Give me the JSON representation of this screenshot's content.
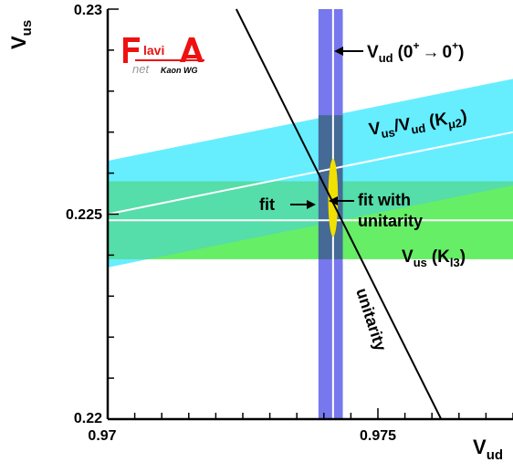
{
  "logo": {
    "flavi": "Flavi",
    "a": "A",
    "net": "net",
    "sub": "Kaon WG"
  },
  "colors": {
    "kl3_band": "#66ee66",
    "kmu2_band": "#66eeff",
    "overlap_band": "#55ddaa",
    "vud_band": "#7777ee",
    "vud_dark": "#336677",
    "ellipse": "#f2e000",
    "logo_red": "#ee1111",
    "logo_grey": "#999999"
  },
  "chart_data": {
    "type": "line",
    "xlabel": "V",
    "xlabel_sub": "ud",
    "ylabel": "V",
    "ylabel_sub": "us",
    "xlim": [
      0.97,
      0.9775
    ],
    "ylim": [
      0.22,
      0.23
    ],
    "xticks": [
      "0.97",
      "0.975"
    ],
    "yticks": [
      "0.22",
      "0.225",
      "0.23"
    ],
    "xtick_values": [
      0.97,
      0.975
    ],
    "ytick_values": [
      0.22,
      0.225,
      0.23
    ],
    "grid": false,
    "bands": [
      {
        "name": "V_us (K_l3)",
        "orientation": "horizontal",
        "lower": 0.2239,
        "upper": 0.2258,
        "central": 0.22485
      },
      {
        "name": "V_us/V_ud (K_mu2)",
        "orientation": "sloped",
        "lower_at_x": [
          [
            0.97,
            0.2237
          ],
          [
            0.9775,
            0.2257
          ]
        ],
        "upper_at_x": [
          [
            0.97,
            0.2263
          ],
          [
            0.9775,
            0.2283
          ]
        ],
        "central_at_x": [
          [
            0.97,
            0.225
          ],
          [
            0.9775,
            0.227
          ]
        ]
      },
      {
        "name": "V_ud (0+ -> 0+)",
        "orientation": "vertical",
        "lower": 0.9739,
        "upper": 0.97435,
        "central": 0.97417
      }
    ],
    "lines": [
      {
        "name": "unitarity",
        "points": [
          [
            0.97238,
            0.23
          ],
          [
            0.97617,
            0.22
          ]
        ]
      }
    ],
    "ellipse": {
      "name": "fit",
      "center": [
        0.97417,
        0.2254
      ],
      "half_width": 9e-05,
      "half_height": 0.00095
    },
    "annotations": {
      "vud_label": "V",
      "vud_sub": "ud",
      "vud_tail": "(0",
      "vud_sup1": "+",
      "vud_arrow": "→",
      "vud_zero": "0",
      "vud_sup2": "+",
      "vud_close": ")",
      "kmu2_v1": "V",
      "kmu2_s1": "us",
      "kmu2_slash": "/V",
      "kmu2_s2": "ud",
      "kmu2_paren": "(K",
      "kmu2_mu": "μ2",
      "kmu2_close": ")",
      "kl3_v": "V",
      "kl3_s": "us",
      "kl3_paren": "(K",
      "kl3_sub": "l3",
      "kl3_close": ")",
      "fit": "fit",
      "fit_unitarity_line1": "fit with",
      "fit_unitarity_line2": "unitarity",
      "unitarity": "unitarity"
    }
  }
}
